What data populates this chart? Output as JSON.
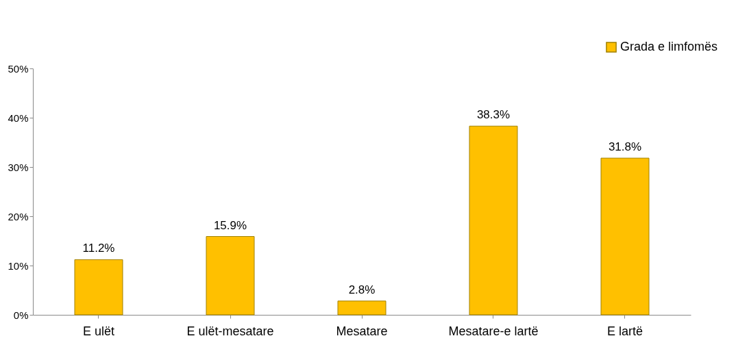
{
  "chart_data": {
    "type": "bar",
    "categories": [
      "E ulët",
      "E ulët-mesatare",
      "Mesatare",
      "Mesatare-e lartë",
      "E lartë"
    ],
    "series": [
      {
        "name": "Grada e limfomës",
        "color": "#ffc000",
        "values": [
          11.2,
          15.9,
          2.8,
          38.3,
          31.8
        ],
        "value_labels": [
          "11.2%",
          "15.9%",
          "2.8%",
          "38.3%",
          "31.8%"
        ]
      }
    ],
    "ylim": [
      0,
      50
    ],
    "yticks": [
      {
        "value": 0,
        "label": "0%"
      },
      {
        "value": 10,
        "label": "10%"
      },
      {
        "value": 20,
        "label": "20%"
      },
      {
        "value": 30,
        "label": "30%"
      },
      {
        "value": 40,
        "label": "40%"
      },
      {
        "value": 50,
        "label": "50%"
      }
    ],
    "grid": false,
    "legend": "top right"
  }
}
